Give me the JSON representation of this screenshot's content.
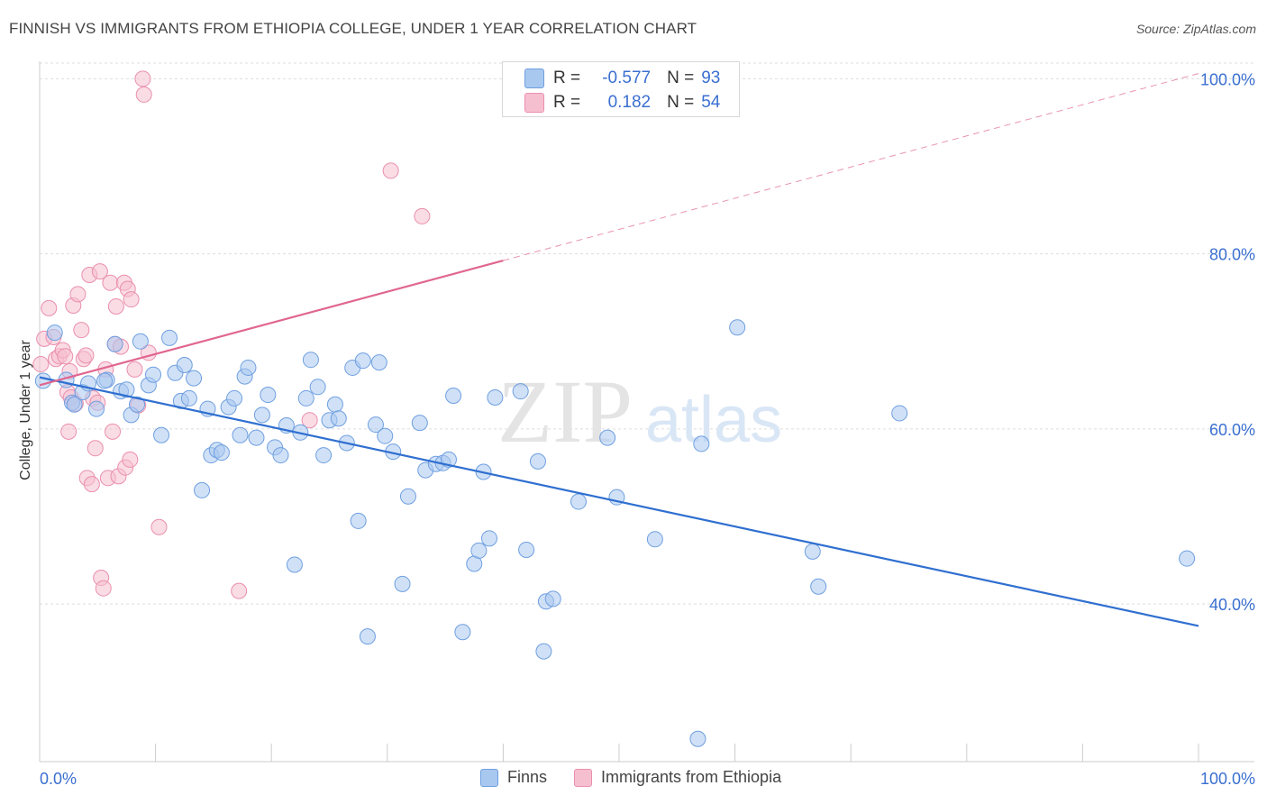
{
  "title": "FINNISH VS IMMIGRANTS FROM ETHIOPIA COLLEGE, UNDER 1 YEAR CORRELATION CHART",
  "source": "Source: ZipAtlas.com",
  "watermark": {
    "zip": "ZIP",
    "atlas": "atlas"
  },
  "colors": {
    "finns_fill": "#a9c8f0",
    "finns_stroke": "#6f9fe0",
    "finns_line": "#2f6fd0",
    "eth_fill": "#f6bfd0",
    "eth_stroke": "#ea8fae",
    "eth_line": "#e06690",
    "axis_label": "#3a6fd0",
    "grid": "#dddddd"
  },
  "stats": [
    {
      "r_label": "R =",
      "r_value": "-0.577",
      "n_label": "N =",
      "n_value": "93"
    },
    {
      "r_label": "R =",
      "r_value": "0.182",
      "n_label": "N =",
      "n_value": "54"
    }
  ],
  "legend": [
    {
      "label": "Finns"
    },
    {
      "label": "Immigrants from Ethiopia"
    }
  ],
  "chart_data": {
    "type": "scatter",
    "title": "FINNISH VS IMMIGRANTS FROM ETHIOPIA COLLEGE, UNDER 1 YEAR CORRELATION CHART",
    "xlabel": "",
    "ylabel": "College, Under 1 year",
    "xlim": [
      0,
      100
    ],
    "ylim": [
      22,
      102
    ],
    "x_tick_labels": [
      "0.0%",
      "100.0%"
    ],
    "y_ticks": [
      40,
      60,
      80,
      100
    ],
    "y_tick_labels": [
      "40.0%",
      "60.0%",
      "80.0%",
      "100.0%"
    ],
    "grid": true,
    "legend_position": "bottom-center",
    "series": [
      {
        "name": "Finns",
        "r": -0.577,
        "n": 93,
        "trend": {
          "x": [
            0,
            100
          ],
          "y": [
            65.9,
            37.5
          ],
          "dashed_from": null
        },
        "points": [
          [
            0.3,
            65.5
          ],
          [
            1.3,
            71.0
          ],
          [
            2.3,
            65.6
          ],
          [
            2.8,
            63.0
          ],
          [
            3.0,
            62.8
          ],
          [
            3.7,
            64.2
          ],
          [
            4.2,
            65.2
          ],
          [
            4.9,
            62.3
          ],
          [
            5.8,
            65.6
          ],
          [
            5.6,
            65.5
          ],
          [
            6.5,
            69.7
          ],
          [
            7.0,
            64.3
          ],
          [
            7.5,
            64.5
          ],
          [
            7.9,
            61.6
          ],
          [
            8.4,
            62.8
          ],
          [
            8.7,
            70.0
          ],
          [
            9.4,
            65.0
          ],
          [
            9.8,
            66.2
          ],
          [
            10.5,
            59.3
          ],
          [
            11.2,
            70.4
          ],
          [
            11.7,
            66.4
          ],
          [
            12.2,
            63.2
          ],
          [
            12.5,
            67.3
          ],
          [
            12.9,
            63.5
          ],
          [
            13.3,
            65.8
          ],
          [
            14.0,
            53.0
          ],
          [
            14.5,
            62.3
          ],
          [
            14.8,
            57.0
          ],
          [
            15.3,
            57.6
          ],
          [
            15.7,
            57.3
          ],
          [
            16.3,
            62.5
          ],
          [
            16.8,
            63.5
          ],
          [
            17.3,
            59.3
          ],
          [
            17.7,
            66.0
          ],
          [
            18.0,
            67.0
          ],
          [
            18.7,
            59.0
          ],
          [
            19.2,
            61.6
          ],
          [
            19.7,
            63.9
          ],
          [
            20.3,
            57.9
          ],
          [
            20.8,
            57.0
          ],
          [
            21.3,
            60.4
          ],
          [
            22.0,
            44.5
          ],
          [
            22.5,
            59.6
          ],
          [
            23.0,
            63.5
          ],
          [
            23.4,
            67.9
          ],
          [
            24.0,
            64.8
          ],
          [
            24.5,
            57.0
          ],
          [
            25.0,
            61.0
          ],
          [
            25.5,
            62.8
          ],
          [
            25.8,
            61.2
          ],
          [
            26.5,
            58.4
          ],
          [
            27.0,
            67.0
          ],
          [
            27.5,
            49.5
          ],
          [
            27.9,
            67.8
          ],
          [
            28.3,
            36.3
          ],
          [
            29.0,
            60.5
          ],
          [
            29.3,
            67.6
          ],
          [
            29.8,
            59.2
          ],
          [
            30.5,
            57.4
          ],
          [
            31.3,
            42.3
          ],
          [
            31.8,
            52.3
          ],
          [
            32.8,
            60.7
          ],
          [
            33.3,
            55.3
          ],
          [
            34.2,
            56.0
          ],
          [
            34.8,
            56.1
          ],
          [
            35.3,
            56.5
          ],
          [
            35.7,
            63.8
          ],
          [
            36.5,
            36.8
          ],
          [
            37.5,
            44.6
          ],
          [
            37.9,
            46.1
          ],
          [
            38.3,
            55.1
          ],
          [
            38.8,
            47.5
          ],
          [
            39.3,
            63.6
          ],
          [
            41.5,
            64.3
          ],
          [
            42.0,
            46.2
          ],
          [
            43.0,
            56.3
          ],
          [
            43.5,
            34.6
          ],
          [
            43.7,
            40.3
          ],
          [
            44.3,
            40.6
          ],
          [
            46.5,
            51.7
          ],
          [
            49.0,
            59.0
          ],
          [
            49.8,
            52.2
          ],
          [
            53.1,
            47.4
          ],
          [
            56.8,
            24.6
          ],
          [
            57.1,
            58.3
          ],
          [
            60.2,
            71.6
          ],
          [
            66.7,
            46.0
          ],
          [
            67.2,
            42.0
          ],
          [
            74.2,
            61.8
          ],
          [
            99.0,
            45.2
          ]
        ]
      },
      {
        "name": "Immigrants from Ethiopia",
        "r": 0.182,
        "n": 54,
        "trend": {
          "x": [
            0,
            100
          ],
          "y": [
            65.0,
            100.6
          ],
          "dashed_from": 40
        },
        "points": [
          [
            0.1,
            67.4
          ],
          [
            0.4,
            70.3
          ],
          [
            0.8,
            73.8
          ],
          [
            1.2,
            70.5
          ],
          [
            1.4,
            68.0
          ],
          [
            1.7,
            68.3
          ],
          [
            2.0,
            69.0
          ],
          [
            2.2,
            68.3
          ],
          [
            2.4,
            64.2
          ],
          [
            2.5,
            59.7
          ],
          [
            2.6,
            66.6
          ],
          [
            2.7,
            63.6
          ],
          [
            2.9,
            74.1
          ],
          [
            3.1,
            62.9
          ],
          [
            3.3,
            75.4
          ],
          [
            3.6,
            71.3
          ],
          [
            3.8,
            68.0
          ],
          [
            4.0,
            68.4
          ],
          [
            4.1,
            54.4
          ],
          [
            4.3,
            77.6
          ],
          [
            4.5,
            53.7
          ],
          [
            4.6,
            63.5
          ],
          [
            4.8,
            57.8
          ],
          [
            5.0,
            63.0
          ],
          [
            5.2,
            78.0
          ],
          [
            5.3,
            43.0
          ],
          [
            5.5,
            41.8
          ],
          [
            5.7,
            66.8
          ],
          [
            5.9,
            54.4
          ],
          [
            6.1,
            76.7
          ],
          [
            6.3,
            59.7
          ],
          [
            6.5,
            69.7
          ],
          [
            6.6,
            74.0
          ],
          [
            6.8,
            54.6
          ],
          [
            7.0,
            69.4
          ],
          [
            7.3,
            76.7
          ],
          [
            7.4,
            55.6
          ],
          [
            7.6,
            76.0
          ],
          [
            7.8,
            56.5
          ],
          [
            7.9,
            74.8
          ],
          [
            8.2,
            66.8
          ],
          [
            8.5,
            62.7
          ],
          [
            8.9,
            100.0
          ],
          [
            9.0,
            98.2
          ],
          [
            9.4,
            68.7
          ],
          [
            10.3,
            48.8
          ],
          [
            17.2,
            41.5
          ],
          [
            23.3,
            61.0
          ],
          [
            30.3,
            89.5
          ],
          [
            33.0,
            84.3
          ]
        ]
      }
    ]
  }
}
